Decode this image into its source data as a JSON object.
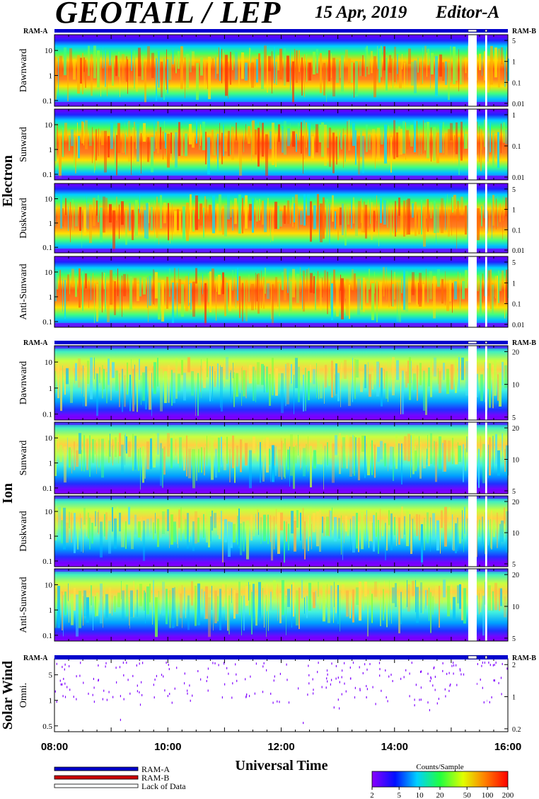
{
  "header": {
    "title": "GEOTAIL / LEP",
    "date": "15 Apr, 2019",
    "editor": "Editor-A"
  },
  "ram_labels": {
    "left": "RAM-A",
    "right": "RAM-B"
  },
  "groups": [
    {
      "label": "Electron"
    },
    {
      "label": "Ion"
    },
    {
      "label": "Solar Wind"
    }
  ],
  "x_axis": {
    "title": "Universal Time",
    "ticks": [
      "08:00",
      "10:00",
      "12:00",
      "14:00",
      "16:00"
    ]
  },
  "legend": {
    "items": [
      "RAM-A",
      "RAM-B",
      "Lack of Data"
    ],
    "colors": [
      "#0000cc",
      "#cc0000",
      "#ffffff"
    ]
  },
  "colorbar": {
    "title": "Counts/Sample",
    "ticks": [
      "2",
      "5",
      "10",
      "20",
      "50",
      "100",
      "200"
    ]
  },
  "chart_data": {
    "type": "heatmap",
    "x_range": [
      "08:00",
      "16:00"
    ],
    "color_scale": {
      "min": 2,
      "max": 200,
      "scale": "log"
    },
    "panels": [
      {
        "group": "Electron",
        "ylabel": "Dawnward",
        "left_ticks": [
          "10",
          "1",
          "0.1"
        ],
        "right_ticks": [
          "5",
          "1",
          "0.1",
          "0.01"
        ],
        "ram_bar": true
      },
      {
        "group": "Electron",
        "ylabel": "Sunward",
        "left_ticks": [
          "10",
          "1",
          "0.1"
        ],
        "right_ticks": [
          "1",
          "0.1",
          "0.01"
        ],
        "ram_bar": false
      },
      {
        "group": "Electron",
        "ylabel": "Duskward",
        "left_ticks": [
          "10",
          "1",
          "0.1"
        ],
        "right_ticks": [
          "5",
          "1",
          "0.1",
          "0.01"
        ],
        "ram_bar": false
      },
      {
        "group": "Electron",
        "ylabel": "Anti-Sunward",
        "left_ticks": [
          "10",
          "1",
          "0.1"
        ],
        "right_ticks": [
          "5",
          "1",
          "0.1",
          "0.01"
        ],
        "ram_bar": false
      },
      {
        "group": "Ion",
        "ylabel": "Dawnward",
        "left_ticks": [
          "10",
          "1",
          "0.1"
        ],
        "right_ticks": [
          "20",
          "10",
          "5"
        ],
        "ram_bar": true
      },
      {
        "group": "Ion",
        "ylabel": "Sunward",
        "left_ticks": [
          "10",
          "1",
          "0.1"
        ],
        "right_ticks": [
          "20",
          "10",
          "5"
        ],
        "ram_bar": false
      },
      {
        "group": "Ion",
        "ylabel": "Duskward",
        "left_ticks": [
          "10",
          "1",
          "0.1"
        ],
        "right_ticks": [
          "20",
          "10",
          "5"
        ],
        "ram_bar": false
      },
      {
        "group": "Ion",
        "ylabel": "Anti-Sunward",
        "left_ticks": [
          "10",
          "1",
          "0.1"
        ],
        "right_ticks": [
          "20",
          "10",
          "5"
        ],
        "ram_bar": false
      },
      {
        "group": "Solar Wind",
        "ylabel": "Omni.",
        "left_ticks": [
          "5",
          "1",
          "0.5"
        ],
        "right_ticks": [
          "2",
          "1",
          "0.2"
        ],
        "ram_bar": true
      }
    ],
    "data_gaps": [
      [
        "15:18",
        "15:27"
      ],
      [
        "15:36",
        "15:38"
      ]
    ]
  }
}
